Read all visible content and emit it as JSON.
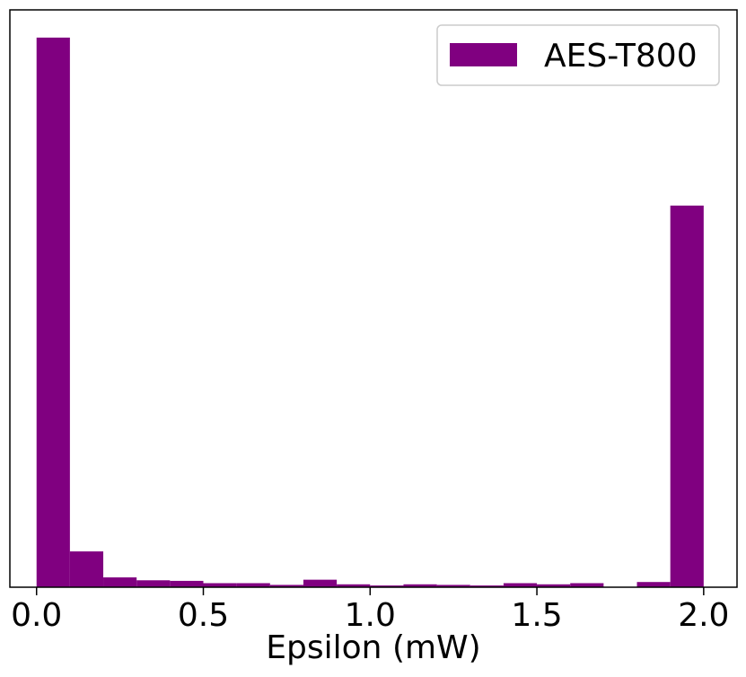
{
  "chart_data": {
    "type": "bar",
    "xlabel": "Epsilon (mW)",
    "ylabel": "",
    "xlim": [
      -0.08,
      2.1
    ],
    "ylim": [
      0,
      1000
    ],
    "xticks": [
      0.0,
      0.5,
      1.0,
      1.5,
      2.0
    ],
    "xtick_labels": [
      "0.0",
      "0.5",
      "1.0",
      "1.5",
      "2.0"
    ],
    "yticks_visible": false,
    "grid": false,
    "legend": {
      "position": "top-right",
      "entries": [
        "AES-T800"
      ]
    },
    "series": [
      {
        "name": "AES-T800",
        "color": "#800080",
        "bin_edges": [
          0.0,
          0.1,
          0.2,
          0.3,
          0.4,
          0.5,
          0.6,
          0.7,
          0.8,
          0.9,
          1.0,
          1.1,
          1.2,
          1.3,
          1.4,
          1.5,
          1.6,
          1.7,
          1.8,
          1.9,
          2.0
        ],
        "values": [
          952,
          62,
          17,
          12,
          11,
          7,
          7,
          4,
          13,
          5,
          3,
          5,
          4,
          3,
          7,
          5,
          7,
          0,
          9,
          661
        ]
      }
    ]
  }
}
